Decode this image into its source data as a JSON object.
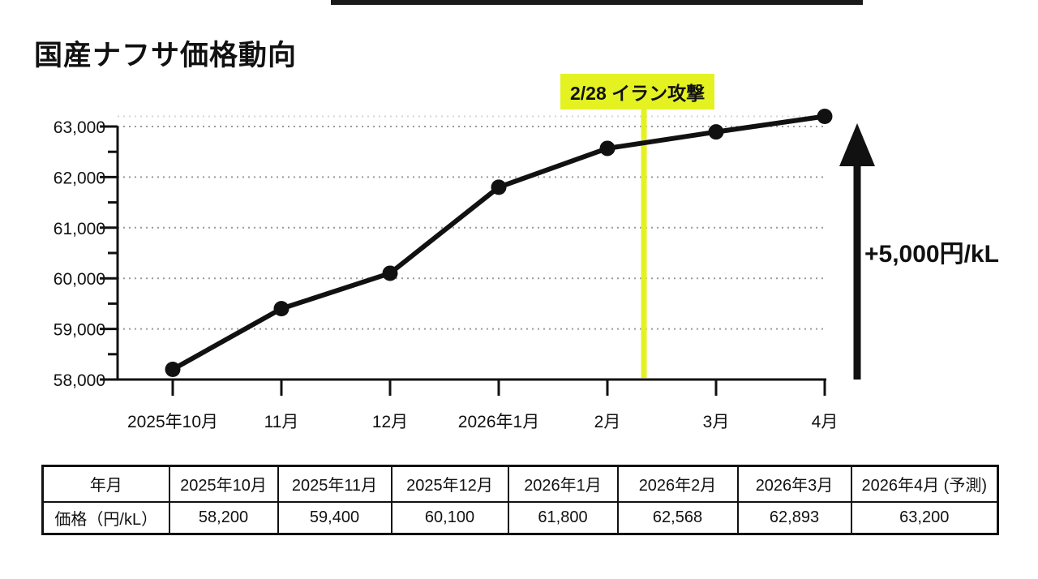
{
  "page": {
    "title": "国産ナフサ価格動向"
  },
  "colors": {
    "background": "#ffffff",
    "ink": "#111111",
    "grid": "#9a9a9a",
    "faint_grid": "#d6d6d6",
    "highlight_yellow": "#e4f222",
    "top_bar": "#1a1a1a"
  },
  "chart_data": {
    "type": "line",
    "title": "国産ナフサ価格動向",
    "categories": [
      "2025年10月",
      "11月",
      "12月",
      "2026年1月",
      "2月",
      "3月",
      "4月"
    ],
    "values": [
      58200,
      59400,
      60100,
      61800,
      62568,
      62893,
      63200
    ],
    "ylim": [
      58000,
      63000
    ],
    "ytick_step": 1000,
    "y_minor_tick_step": 500,
    "ytick_labels": [
      "58,000",
      "59,000",
      "60,000",
      "61,000",
      "62,000",
      "63,000"
    ],
    "grid": "horizontal-dotted",
    "marker": "filled-circle",
    "line_color": "#111111",
    "annotation": {
      "type": "vline",
      "label": "2/28 イラン攻撃",
      "color": "#e4f222",
      "position_between": [
        "2月",
        "3月"
      ]
    },
    "arrow_annotation": {
      "label": "+5,000円/kL",
      "direction": "up",
      "color": "#111111"
    }
  },
  "table": {
    "columns": [
      "年月",
      "2025年10月",
      "2025年11月",
      "2025年12月",
      "2026年1月",
      "2026年2月",
      "2026年3月",
      "2026年4月 (予測)"
    ],
    "rows": [
      {
        "label": "価格（円/kL）",
        "values": [
          "58,200",
          "59,400",
          "60,100",
          "61,800",
          "62,568",
          "62,893",
          "63,200"
        ]
      }
    ]
  }
}
